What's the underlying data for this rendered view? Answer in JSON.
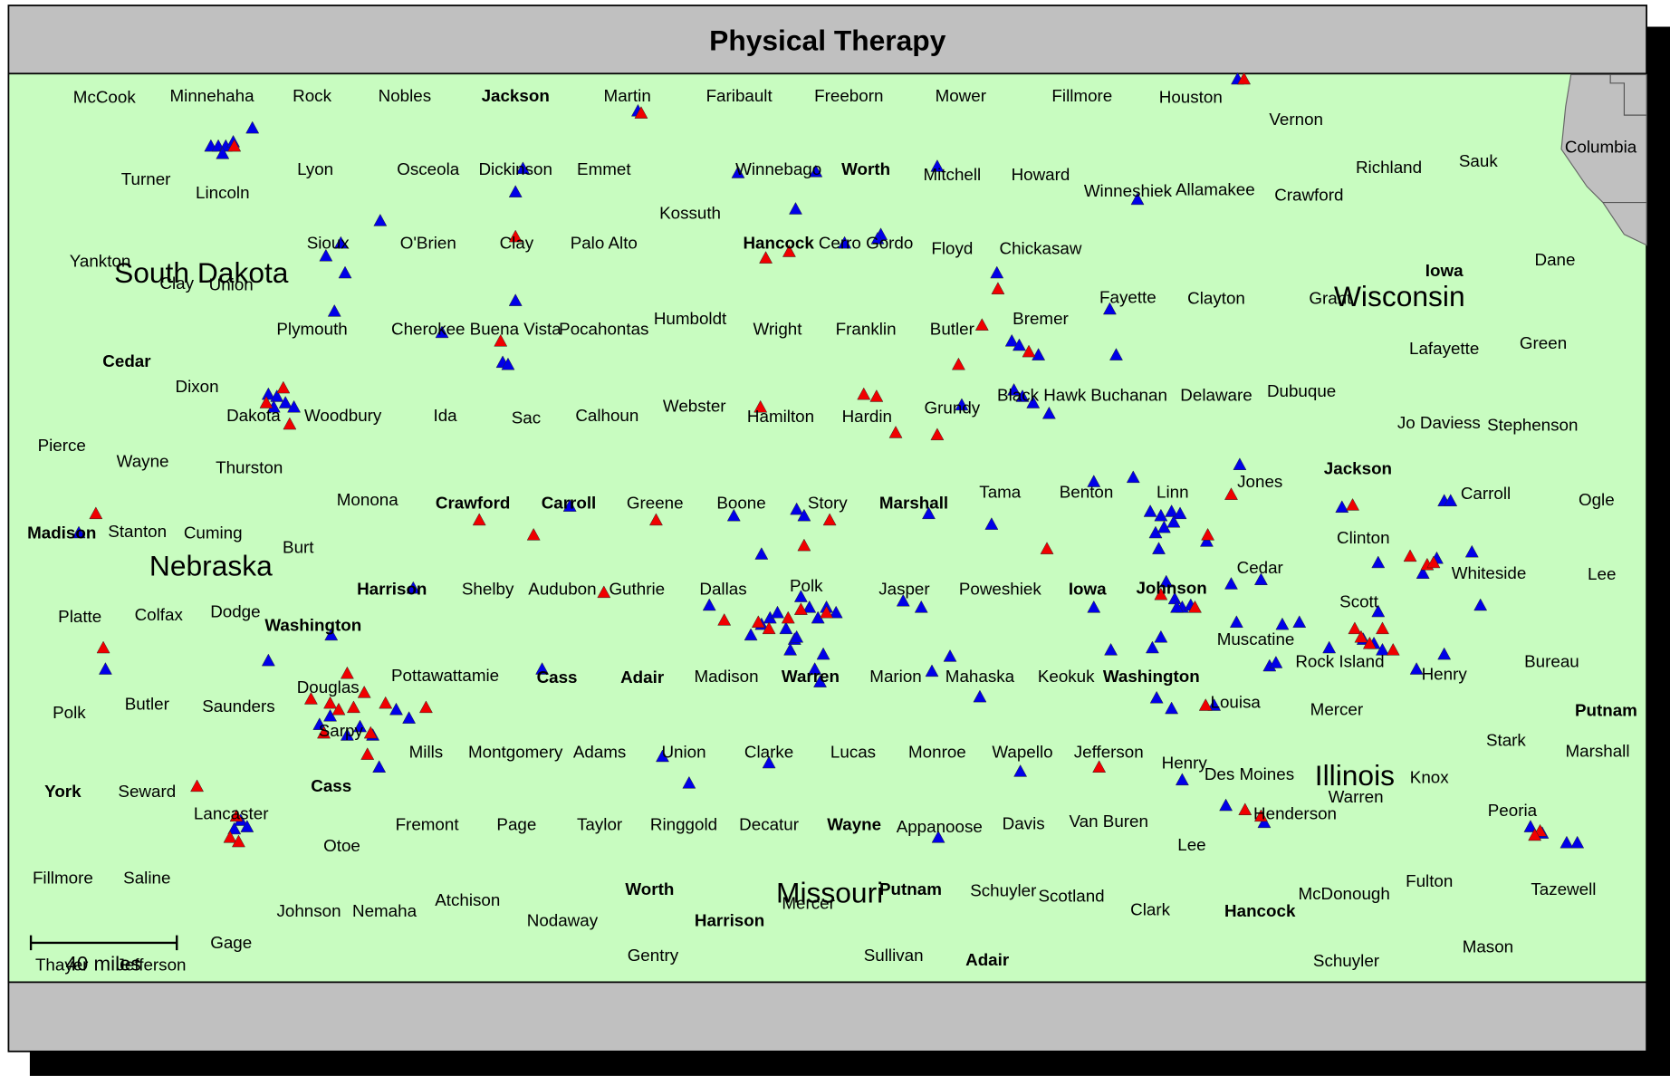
{
  "title": "Physical Therapy",
  "scale_label": "40 miles",
  "labels": [
    "McCook",
    "Minnehaha",
    "Rock",
    "Nobles",
    "Jackson",
    "Martin",
    "Faribault",
    "Freeborn",
    "Mower",
    "Fillmore",
    "Houston",
    "Vernon",
    "Columbia",
    "Turner",
    "Lincoln",
    "Lyon",
    "Osceola",
    "Dickinson",
    "Emmet",
    "Winnebago",
    "Worth",
    "Mitchell",
    "Howard",
    "Winneshiek",
    "Allamakee",
    "Crawford",
    "Richland",
    "Sauk",
    "Kossuth",
    "Sioux",
    "O'Brien",
    "Clay",
    "Palo Alto",
    "Hancock",
    "Cerro Gordo",
    "Floyd",
    "Chickasaw",
    "Yankton",
    "South Dakota",
    "Clay",
    "Union",
    "Iowa",
    "Dane",
    "Wisconsin",
    "Fayette",
    "Clayton",
    "Grant",
    "Plymouth",
    "Cherokee",
    "Buena Vista",
    "Pocahontas",
    "Humboldt",
    "Wright",
    "Franklin",
    "Butler",
    "Bremer",
    "Lafayette",
    "Green",
    "Cedar",
    "Dixon",
    "Dakota",
    "Woodbury",
    "Ida",
    "Sac",
    "Calhoun",
    "Webster",
    "Hamilton",
    "Hardin",
    "Grundy",
    "Black Hawk",
    "Buchanan",
    "Delaware",
    "Dubuque",
    "Jo Daviess",
    "Stephenson",
    "Pierce",
    "Wayne",
    "Thurston",
    "Jones",
    "Jackson",
    "Monona",
    "Crawford",
    "Carroll",
    "Greene",
    "Boone",
    "Story",
    "Marshall",
    "Tama",
    "Benton",
    "Linn",
    "Carroll",
    "Ogle",
    "Madison",
    "Stanton",
    "Cuming",
    "Burt",
    "Clinton",
    "Nebraska",
    "Cedar",
    "Whiteside",
    "Lee",
    "Harrison",
    "Shelby",
    "Audubon",
    "Guthrie",
    "Dallas",
    "Polk",
    "Jasper",
    "Poweshiek",
    "Iowa",
    "Johnson",
    "Scott",
    "Platte",
    "Colfax",
    "Dodge",
    "Washington",
    "Muscatine",
    "Rock Island",
    "Bureau",
    "Douglas",
    "Pottawattamie",
    "Cass",
    "Adair",
    "Madison",
    "Warren",
    "Marion",
    "Mahaska",
    "Keokuk",
    "Washington",
    "Henry",
    "Louisa",
    "Mercer",
    "Putnam",
    "Polk",
    "Butler",
    "Saunders",
    "Sarpy",
    "Stark",
    "Marshall",
    "Mills",
    "Montgomery",
    "Adams",
    "Union",
    "Clarke",
    "Lucas",
    "Monroe",
    "Wapello",
    "Jefferson",
    "Henry",
    "Des Moines",
    "Illinois",
    "Knox",
    "York",
    "Seward",
    "Cass",
    "Warren",
    "Lancaster",
    "Henderson",
    "Peoria",
    "Fremont",
    "Page",
    "Taylor",
    "Ringgold",
    "Decatur",
    "Wayne",
    "Appanoose",
    "Davis",
    "Van Buren",
    "Otoe",
    "Lee",
    "Fillmore",
    "Saline",
    "Fulton",
    "Tazewell",
    "Worth",
    "Missouri",
    "Putnam",
    "Schuyler",
    "Scotland",
    "McDonough",
    "Clark",
    "Hancock",
    "Atchison",
    "Mercer",
    "Johnson",
    "Nemaha",
    "Nodaway",
    "Harrison",
    "Gage",
    "Mason",
    "Gentry",
    "Sullivan",
    "Adair",
    "Schuyler",
    "Thayer",
    "Jefferson"
  ]
}
